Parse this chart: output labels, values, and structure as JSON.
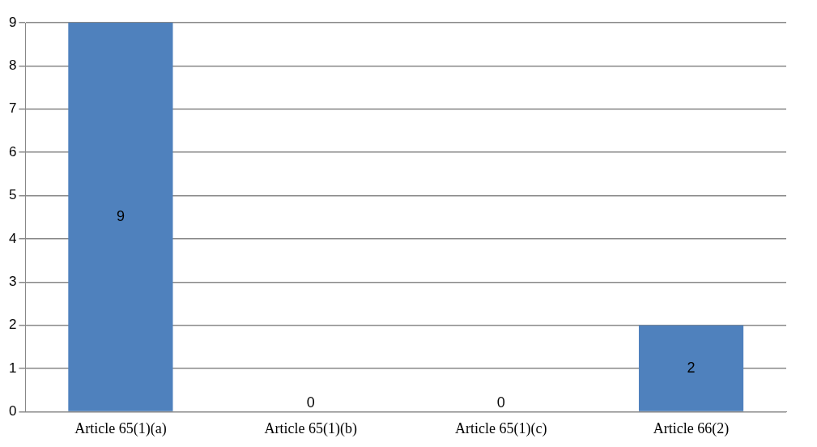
{
  "chart_data": {
    "type": "bar",
    "categories": [
      "Article 65(1)(a)",
      "Article 65(1)(b)",
      "Article 65(1)(c)",
      "Article 66(2)"
    ],
    "values": [
      9,
      0,
      0,
      2
    ],
    "color": "#4f81bd",
    "ylim": [
      0,
      9
    ],
    "yticks": [
      0,
      1,
      2,
      3,
      4,
      5,
      6,
      7,
      8,
      9
    ],
    "grid": "y",
    "data_labels": true
  }
}
